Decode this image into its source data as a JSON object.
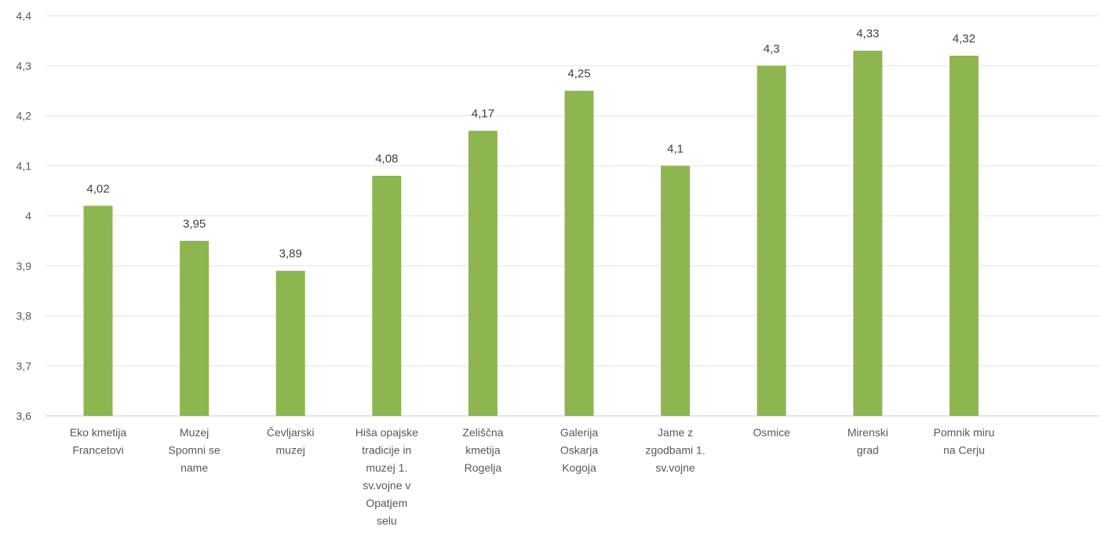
{
  "chart_data": {
    "type": "bar",
    "categories": [
      [
        "Eko kmetija",
        "Francetovi"
      ],
      [
        "Muzej",
        "Spomni se",
        "name"
      ],
      [
        "Čevljarski",
        "muzej"
      ],
      [
        "Hiša opajske",
        "tradicije in",
        "muzej 1.",
        "sv.vojne v",
        "Opatjem",
        "selu"
      ],
      [
        "Zeliščna",
        "kmetija",
        "Rogelja"
      ],
      [
        "Galerija",
        "Oskarja",
        "Kogoja"
      ],
      [
        "Jame z",
        "zgodbami 1.",
        "sv.vojne"
      ],
      [
        "Osmice"
      ],
      [
        "Mirenski",
        "grad"
      ],
      [
        "Pomnik miru",
        "na Cerju"
      ]
    ],
    "values": [
      4.02,
      3.95,
      3.89,
      4.08,
      4.17,
      4.25,
      4.1,
      4.3,
      4.33,
      4.32
    ],
    "data_labels": [
      "4,02",
      "3,95",
      "3,89",
      "4,08",
      "4,17",
      "4,25",
      "4,1",
      "4,3",
      "4,33",
      "4,32"
    ],
    "ylim": [
      3.6,
      4.4
    ],
    "yticks": [
      3.6,
      3.7,
      3.8,
      3.9,
      4.0,
      4.1,
      4.2,
      4.3,
      4.4
    ],
    "ytick_labels": [
      "3,6",
      "3,7",
      "3,8",
      "3,9",
      "4",
      "4,1",
      "4,2",
      "4,3",
      "4,4"
    ],
    "title": "",
    "xlabel": "",
    "ylabel": "",
    "grid": true,
    "legend": "none",
    "bar_color": "#8db650"
  }
}
